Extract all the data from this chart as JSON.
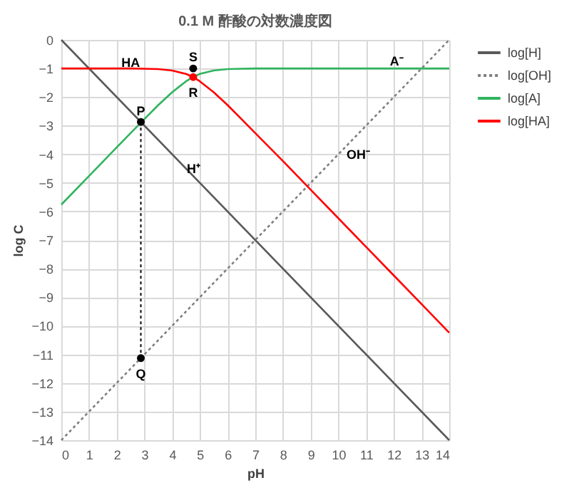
{
  "chart_data": {
    "type": "line",
    "title": "0.1 M 酢酸の対数濃度図",
    "xlabel": "pH",
    "ylabel": "log C",
    "xlim": [
      0,
      14
    ],
    "ylim": [
      -14,
      0
    ],
    "xticks": [
      0,
      1,
      2,
      3,
      4,
      5,
      6,
      7,
      8,
      9,
      10,
      11,
      12,
      13,
      14
    ],
    "yticks": [
      0,
      -1,
      -2,
      -3,
      -4,
      -5,
      -6,
      -7,
      -8,
      -9,
      -10,
      -11,
      -12,
      -13,
      -14
    ],
    "grid": true,
    "legend": "right",
    "series": [
      {
        "name": "log[H]",
        "color": "#595959",
        "line_style": "solid",
        "x": [
          0,
          14
        ],
        "values": [
          0,
          -14
        ]
      },
      {
        "name": "log[OH]",
        "color": "#7f7f7f",
        "line_style": "dotted",
        "x": [
          0,
          14
        ],
        "values": [
          -14,
          0
        ]
      },
      {
        "name": "log[A]",
        "color": "#2eb45e",
        "line_style": "solid",
        "x": [
          0,
          1,
          2,
          2.5,
          3,
          3.5,
          4,
          4.5,
          4.76,
          5,
          5.5,
          6,
          6.5,
          7,
          8,
          10,
          14
        ],
        "values": [
          -5.76,
          -4.76,
          -3.76,
          -3.26,
          -2.77,
          -2.28,
          -1.83,
          -1.45,
          -1.3,
          -1.19,
          -1.07,
          -1.02,
          -1.01,
          -1.0,
          -1.0,
          -1.0,
          -1.0
        ]
      },
      {
        "name": "log[HA]",
        "color": "#ff0000",
        "line_style": "solid",
        "x": [
          0,
          1,
          2,
          2.5,
          3,
          3.5,
          4,
          4.5,
          4.76,
          5,
          5.5,
          6,
          6.5,
          7,
          8,
          9,
          10,
          11,
          12,
          13,
          14
        ],
        "values": [
          -1.0,
          -1.0,
          -1.0,
          -1.0,
          -1.01,
          -1.02,
          -1.07,
          -1.19,
          -1.3,
          -1.45,
          -1.83,
          -2.28,
          -2.77,
          -3.26,
          -4.24,
          -5.24,
          -6.24,
          -7.24,
          -8.24,
          -9.24,
          -10.24
        ]
      },
      {
        "type": "line",
        "color": "#000000",
        "line_style": "dotted",
        "x": [
          2.87,
          2.87
        ],
        "values": [
          -2.87,
          -11.13
        ]
      },
      {
        "type": "scatter",
        "marker": "circle",
        "x": [
          2.87,
          2.87,
          4.76,
          4.76
        ],
        "values": [
          -2.87,
          -11.13,
          -1.0,
          -1.3
        ],
        "colors": [
          "#000000",
          "#000000",
          "#000000",
          "#ff0000"
        ]
      }
    ],
    "annotations": [
      {
        "text": "HA",
        "x": 2.5,
        "y": -0.8
      },
      {
        "text": "S",
        "x": 4.76,
        "y": -0.6
      },
      {
        "text": "R",
        "x": 4.76,
        "y": -1.3
      },
      {
        "text": "P",
        "x": 2.87,
        "y": -2.5
      },
      {
        "text": "H⁺",
        "x": 4,
        "y": -4
      },
      {
        "text": "OH⁻",
        "x": 10,
        "y": -4
      },
      {
        "text": "A⁻",
        "x": 12.1,
        "y": -0.75
      },
      {
        "text": "Q",
        "x": 2.87,
        "y": -11.13
      }
    ]
  }
}
